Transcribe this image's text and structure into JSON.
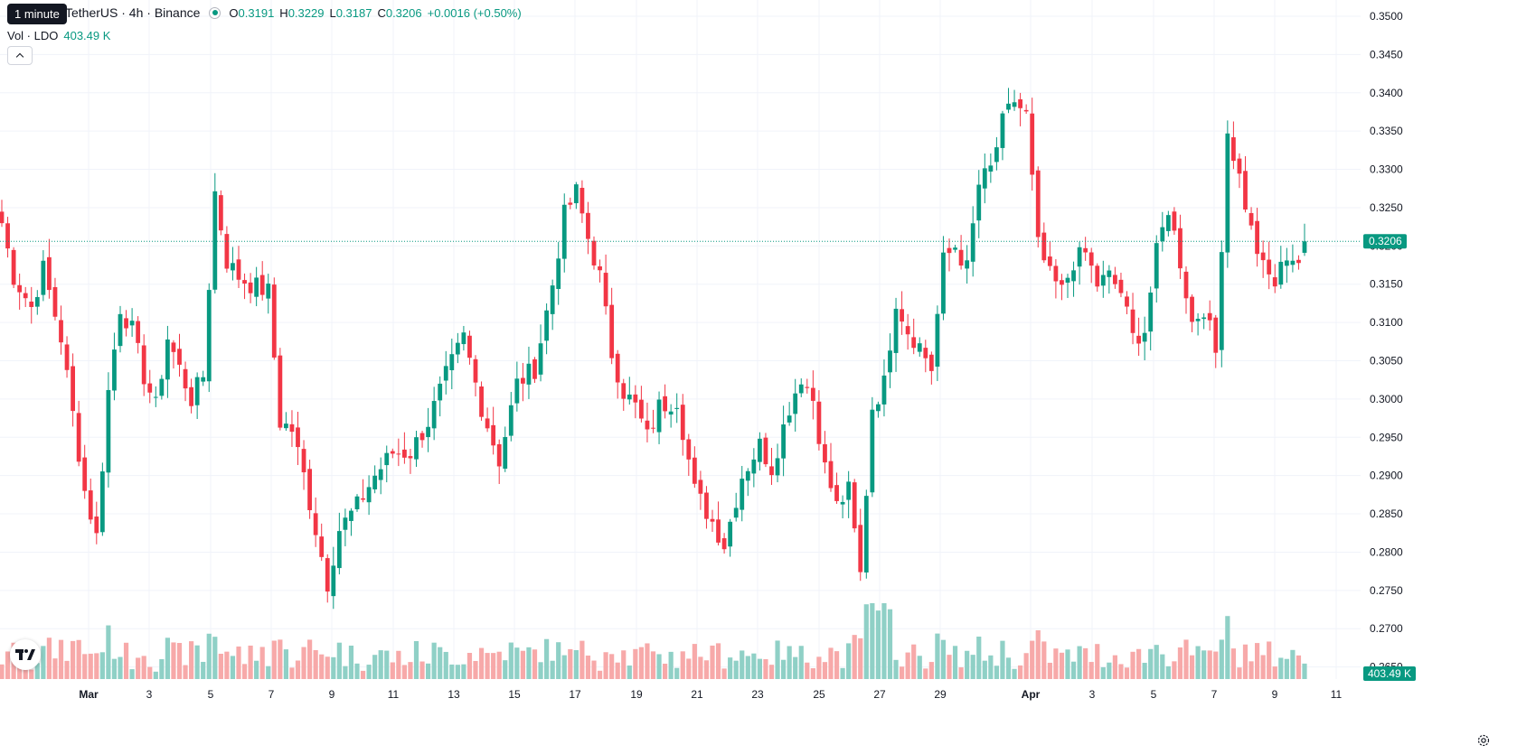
{
  "legend": {
    "tooltip": "1 minute",
    "symbol": "TetherUS · 4h · Binance",
    "open_label": "O",
    "open": "0.3191",
    "high_label": "H",
    "high": "0.3229",
    "low_label": "L",
    "low": "0.3187",
    "close_label": "C",
    "close": "0.3206",
    "change": "+0.0016 (+0.50%)"
  },
  "volume_legend": {
    "label": "Vol · LDO",
    "value": "403.49 K"
  },
  "colors": {
    "up": "#089981",
    "down": "#f23645",
    "up_volume": "#8fd0c6",
    "down_volume": "#f7a9a9"
  },
  "icons": {
    "collapse": "chevron-up-icon",
    "logo": "tradingview-logo-icon",
    "settings": "gear-icon"
  },
  "chart_data": {
    "type": "candlestick",
    "timeframe": "4h",
    "ylim": [
      0.266,
      0.352
    ],
    "y_ticks": [
      "0.3500",
      "0.3450",
      "0.3400",
      "0.3350",
      "0.3300",
      "0.3250",
      "0.3200",
      "0.3150",
      "0.3100",
      "0.3050",
      "0.3000",
      "0.2950",
      "0.2900",
      "0.2850",
      "0.2800",
      "0.2750",
      "0.2700",
      "0.2650"
    ],
    "x_ticks": [
      "Mar",
      "3",
      "5",
      "7",
      "9",
      "11",
      "13",
      "15",
      "17",
      "19",
      "21",
      "23",
      "25",
      "27",
      "29",
      "Apr",
      "3",
      "5",
      "7",
      "9",
      "11"
    ],
    "last_price_label": "0.3206",
    "last_volume_label": "403.49 K",
    "anchors": [
      {
        "i": 0,
        "c": 0.323
      },
      {
        "i": 2,
        "c": 0.316
      },
      {
        "i": 5,
        "c": 0.312
      },
      {
        "i": 7,
        "c": 0.317
      },
      {
        "i": 10,
        "c": 0.308
      },
      {
        "i": 12,
        "c": 0.298
      },
      {
        "i": 14,
        "c": 0.288
      },
      {
        "i": 16,
        "c": 0.282
      },
      {
        "i": 18,
        "c": 0.301
      },
      {
        "i": 20,
        "c": 0.312
      },
      {
        "i": 22,
        "c": 0.309
      },
      {
        "i": 24,
        "c": 0.303
      },
      {
        "i": 26,
        "c": 0.299
      },
      {
        "i": 28,
        "c": 0.308
      },
      {
        "i": 30,
        "c": 0.304
      },
      {
        "i": 32,
        "c": 0.3
      },
      {
        "i": 34,
        "c": 0.303
      },
      {
        "i": 36,
        "c": 0.327
      },
      {
        "i": 38,
        "c": 0.318
      },
      {
        "i": 40,
        "c": 0.316
      },
      {
        "i": 42,
        "c": 0.315
      },
      {
        "i": 45,
        "c": 0.314
      },
      {
        "i": 47,
        "c": 0.297
      },
      {
        "i": 49,
        "c": 0.296
      },
      {
        "i": 51,
        "c": 0.29
      },
      {
        "i": 53,
        "c": 0.283
      },
      {
        "i": 55,
        "c": 0.276
      },
      {
        "i": 57,
        "c": 0.283
      },
      {
        "i": 60,
        "c": 0.286
      },
      {
        "i": 63,
        "c": 0.29
      },
      {
        "i": 66,
        "c": 0.293
      },
      {
        "i": 69,
        "c": 0.293
      },
      {
        "i": 72,
        "c": 0.297
      },
      {
        "i": 75,
        "c": 0.303
      },
      {
        "i": 78,
        "c": 0.308
      },
      {
        "i": 81,
        "c": 0.299
      },
      {
        "i": 84,
        "c": 0.292
      },
      {
        "i": 87,
        "c": 0.302
      },
      {
        "i": 90,
        "c": 0.304
      },
      {
        "i": 93,
        "c": 0.315
      },
      {
        "i": 95,
        "c": 0.324
      },
      {
        "i": 97,
        "c": 0.327
      },
      {
        "i": 99,
        "c": 0.321
      },
      {
        "i": 101,
        "c": 0.316
      },
      {
        "i": 103,
        "c": 0.306
      },
      {
        "i": 105,
        "c": 0.301
      },
      {
        "i": 107,
        "c": 0.299
      },
      {
        "i": 109,
        "c": 0.295
      },
      {
        "i": 111,
        "c": 0.299
      },
      {
        "i": 114,
        "c": 0.3
      },
      {
        "i": 117,
        "c": 0.288
      },
      {
        "i": 120,
        "c": 0.284
      },
      {
        "i": 122,
        "c": 0.281
      },
      {
        "i": 125,
        "c": 0.29
      },
      {
        "i": 128,
        "c": 0.294
      },
      {
        "i": 130,
        "c": 0.291
      },
      {
        "i": 133,
        "c": 0.299
      },
      {
        "i": 135,
        "c": 0.303
      },
      {
        "i": 137,
        "c": 0.3
      },
      {
        "i": 139,
        "c": 0.291
      },
      {
        "i": 141,
        "c": 0.286
      },
      {
        "i": 143,
        "c": 0.288
      },
      {
        "i": 145,
        "c": 0.277
      },
      {
        "i": 147,
        "c": 0.299
      },
      {
        "i": 149,
        "c": 0.302
      },
      {
        "i": 151,
        "c": 0.313
      },
      {
        "i": 153,
        "c": 0.309
      },
      {
        "i": 155,
        "c": 0.307
      },
      {
        "i": 157,
        "c": 0.304
      },
      {
        "i": 159,
        "c": 0.318
      },
      {
        "i": 161,
        "c": 0.32
      },
      {
        "i": 163,
        "c": 0.317
      },
      {
        "i": 165,
        "c": 0.328
      },
      {
        "i": 167,
        "c": 0.33
      },
      {
        "i": 169,
        "c": 0.336
      },
      {
        "i": 171,
        "c": 0.339
      },
      {
        "i": 173,
        "c": 0.337
      },
      {
        "i": 175,
        "c": 0.32
      },
      {
        "i": 177,
        "c": 0.316
      },
      {
        "i": 179,
        "c": 0.314
      },
      {
        "i": 181,
        "c": 0.318
      },
      {
        "i": 183,
        "c": 0.319
      },
      {
        "i": 185,
        "c": 0.315
      },
      {
        "i": 187,
        "c": 0.316
      },
      {
        "i": 189,
        "c": 0.314
      },
      {
        "i": 191,
        "c": 0.308
      },
      {
        "i": 193,
        "c": 0.309
      },
      {
        "i": 195,
        "c": 0.319
      },
      {
        "i": 197,
        "c": 0.325
      },
      {
        "i": 199,
        "c": 0.318
      },
      {
        "i": 201,
        "c": 0.31
      },
      {
        "i": 203,
        "c": 0.312
      },
      {
        "i": 205,
        "c": 0.306
      },
      {
        "i": 207,
        "c": 0.335
      },
      {
        "i": 209,
        "c": 0.329
      },
      {
        "i": 211,
        "c": 0.322
      },
      {
        "i": 213,
        "c": 0.317
      },
      {
        "i": 215,
        "c": 0.315
      },
      {
        "i": 217,
        "c": 0.319
      },
      {
        "i": 219,
        "c": 0.318
      },
      {
        "i": 220,
        "c": 0.3206
      }
    ]
  }
}
